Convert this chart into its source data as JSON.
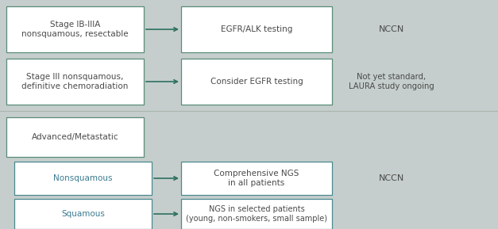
{
  "bg_color": "#c5cecc",
  "box_fill": "#ffffff",
  "top_edge_color": "#5a8c78",
  "bottom_edge_color": "#4a8a90",
  "arrow_color": "#2d7060",
  "text_dark": "#4a4a4a",
  "text_teal": "#3a7a90",
  "nccn_color": "#4a4a4a",
  "note_color": "#4a4a4a",
  "divider_color": "#aab5b0",
  "figw": 6.27,
  "figh": 2.89,
  "dpi": 100,
  "rows": [
    {
      "left_text": "Stage IB-IIIA\nnonsquamous, resectable",
      "right_text": "EGFR/ALK testing",
      "annotation": "NCCN",
      "ann_lines": 1,
      "text_color": "dark",
      "section": "top"
    },
    {
      "left_text": "Stage III nonsquamous,\ndefinitive chemoradiation",
      "right_text": "Consider EGFR testing",
      "annotation": "Not yet standard,\nLAURA study ongoing",
      "ann_lines": 2,
      "text_color": "dark",
      "section": "top"
    },
    {
      "left_text": "Advanced/Metastatic",
      "right_text": null,
      "annotation": null,
      "ann_lines": 0,
      "text_color": "dark",
      "section": "bottom_header"
    },
    {
      "left_text": "Nonsquamous",
      "right_text": "Comprehensive NGS\nin all patients",
      "annotation": "NCCN",
      "ann_lines": 1,
      "text_color": "teal",
      "section": "bottom"
    },
    {
      "left_text": "Squamous",
      "right_text": "NGS in selected patients\n(young, non-smokers, small sample)",
      "annotation": null,
      "ann_lines": 0,
      "text_color": "teal",
      "section": "bottom"
    }
  ]
}
